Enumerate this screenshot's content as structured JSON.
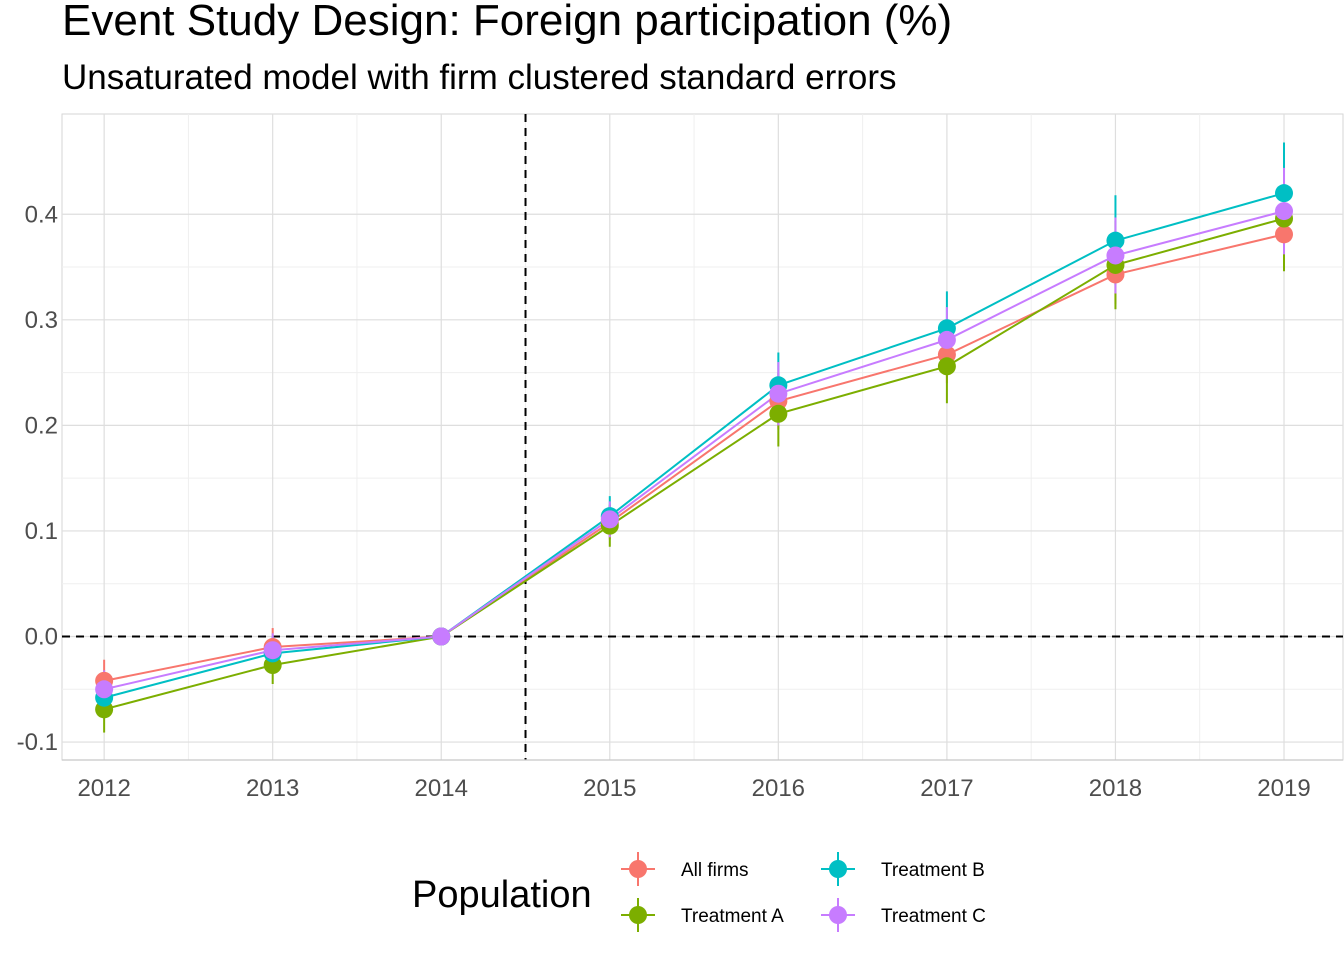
{
  "chart_data": {
    "type": "line",
    "title": "Event Study Design: Foreign participation (%)",
    "subtitle": "Unsaturated model with firm clustered standard errors",
    "xlabel": "",
    "ylabel": "",
    "x": [
      2012,
      2013,
      2014,
      2015,
      2016,
      2017,
      2018,
      2019
    ],
    "xlim": [
      2011.75,
      2019.35
    ],
    "ylim": [
      -0.117,
      0.495
    ],
    "y_ticks": [
      "-0.1",
      "0.0",
      "0.1",
      "0.2",
      "0.3",
      "0.4"
    ],
    "x_ticks": [
      "2012",
      "2013",
      "2014",
      "2015",
      "2016",
      "2017",
      "2018",
      "2019"
    ],
    "grid": true,
    "reference_lines": {
      "horizontal_y": 0.0,
      "vertical_x": 2014.5
    },
    "legend": {
      "title": "Population",
      "placement": "bottom",
      "entries": [
        "All firms",
        "Treatment A",
        "Treatment B",
        "Treatment C"
      ]
    },
    "series": [
      {
        "name": "All firms",
        "color": "#F8766D",
        "values": [
          -0.042,
          -0.01,
          0.0,
          0.108,
          0.223,
          0.267,
          0.343,
          0.381
        ],
        "ci_low": [
          -0.062,
          -0.026,
          0.0,
          0.092,
          0.196,
          0.24,
          0.315,
          0.352
        ],
        "ci_high": [
          -0.022,
          0.008,
          0.0,
          0.124,
          0.25,
          0.294,
          0.371,
          0.41
        ]
      },
      {
        "name": "Treatment A",
        "color": "#7CAE00",
        "values": [
          -0.069,
          -0.027,
          0.0,
          0.105,
          0.211,
          0.256,
          0.352,
          0.396
        ],
        "ci_low": [
          -0.091,
          -0.045,
          0.0,
          0.085,
          0.18,
          0.221,
          0.31,
          0.346
        ],
        "ci_high": [
          -0.047,
          -0.009,
          0.0,
          0.125,
          0.242,
          0.291,
          0.394,
          0.446
        ]
      },
      {
        "name": "Treatment B",
        "color": "#00BFC4",
        "values": [
          -0.058,
          -0.016,
          0.0,
          0.114,
          0.238,
          0.292,
          0.375,
          0.42
        ],
        "ci_low": [
          -0.076,
          -0.032,
          0.0,
          0.097,
          0.207,
          0.257,
          0.333,
          0.374
        ],
        "ci_high": [
          -0.04,
          0.0,
          0.0,
          0.133,
          0.269,
          0.327,
          0.418,
          0.468
        ]
      },
      {
        "name": "Treatment C",
        "color": "#C77CFF",
        "values": [
          -0.05,
          -0.013,
          0.0,
          0.111,
          0.23,
          0.281,
          0.361,
          0.403
        ],
        "ci_low": [
          -0.068,
          -0.029,
          0.0,
          0.094,
          0.2,
          0.25,
          0.325,
          0.362
        ],
        "ci_high": [
          -0.032,
          0.003,
          0.0,
          0.128,
          0.26,
          0.312,
          0.397,
          0.444
        ]
      }
    ]
  }
}
